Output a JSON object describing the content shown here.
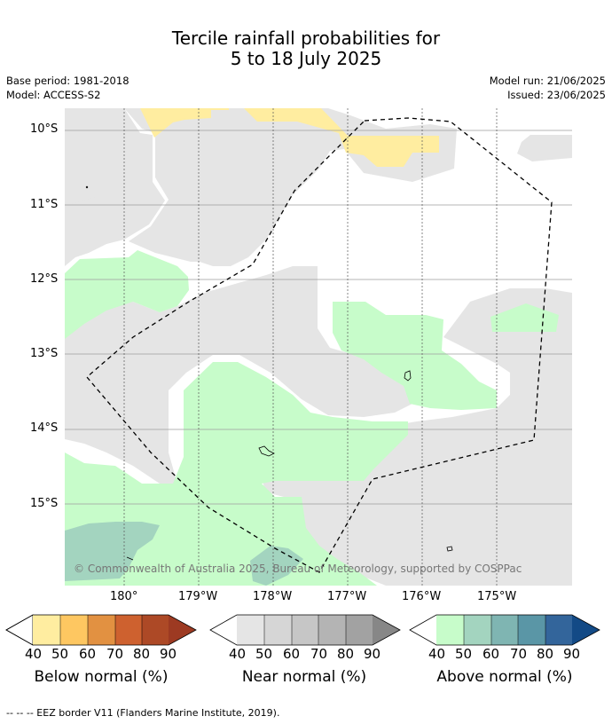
{
  "title": {
    "line1": "Tercile rainfall probabilities for",
    "line2": "5 to 18 July 2025"
  },
  "meta": {
    "base_period": "Base period: 1981-2018",
    "model": "Model: ACCESS-S2",
    "model_run": "Model run: 21/06/2025",
    "issued": "Issued: 23/06/2025"
  },
  "map": {
    "lat_labels": [
      "10°S",
      "11°S",
      "12°S",
      "13°S",
      "14°S",
      "15°S"
    ],
    "lon_labels": [
      "180°",
      "179°W",
      "178°W",
      "177°W",
      "176°W",
      "175°W"
    ],
    "copyright": "© Commonwealth of Australia 2025, Bureau of Meteorology, supported by COSPPac",
    "colors": {
      "below_50": "#ffeda0",
      "near": "#e5e5e5",
      "above_50": "#c7fcca",
      "above_60": "#a3d4bf"
    }
  },
  "colorbars": [
    {
      "name": "below-normal",
      "label": "Below normal (%)",
      "ticks": [
        "40",
        "50",
        "60",
        "70",
        "80",
        "90"
      ],
      "colors": [
        "#ffeda0",
        "#fec761",
        "#e29141",
        "#ce612f",
        "#ad4926",
        "#9d3a22"
      ]
    },
    {
      "name": "near-normal",
      "label": "Near normal (%)",
      "ticks": [
        "40",
        "50",
        "60",
        "70",
        "80",
        "90"
      ],
      "colors": [
        "#e5e5e5",
        "#d6d6d6",
        "#c6c6c6",
        "#b4b4b4",
        "#a2a2a2",
        "#878787"
      ]
    },
    {
      "name": "above-normal",
      "label": "Above normal (%)",
      "ticks": [
        "40",
        "50",
        "60",
        "70",
        "80",
        "90"
      ],
      "colors": [
        "#c7fcca",
        "#a3d4bf",
        "#7fb5b2",
        "#5a96a6",
        "#33659b",
        "#134a86"
      ]
    }
  ],
  "footer": {
    "legend": "--  --  -- EEZ border V11 (Flanders Marine Institute, 2019)."
  }
}
